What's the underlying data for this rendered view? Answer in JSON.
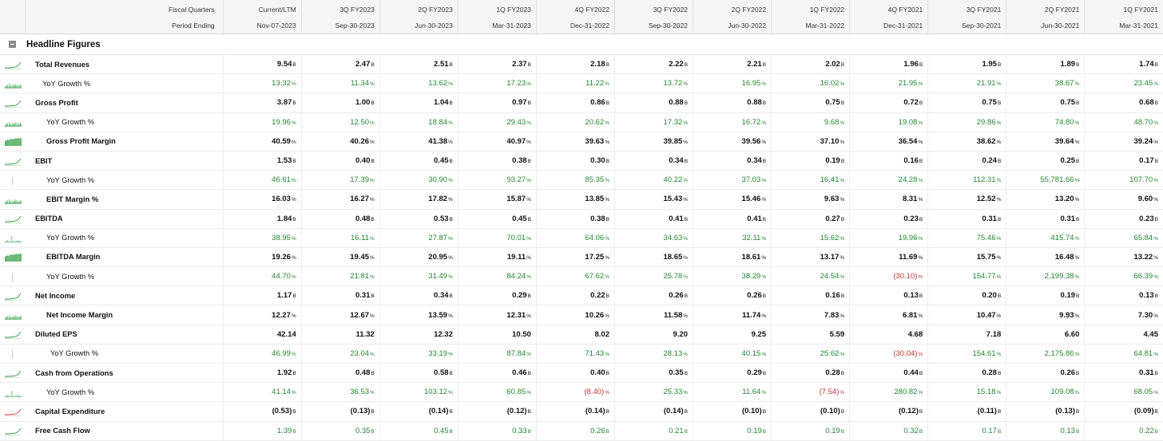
{
  "header": {
    "row1_label": "Fiscal Quarters",
    "row2_label": "Period Ending",
    "quarters": [
      "Current/LTM",
      "3Q FY2023",
      "2Q FY2023",
      "1Q FY2023",
      "4Q FY2022",
      "3Q FY2022",
      "2Q FY2022",
      "1Q FY2022",
      "4Q FY2021",
      "3Q FY2021",
      "2Q FY2021",
      "1Q FY2021"
    ],
    "periods": [
      "Nov-07-2023",
      "Sep-30-2023",
      "Jun-30-2023",
      "Mar-31-2023",
      "Dec-31-2022",
      "Sep-30-2022",
      "Jun-30-2022",
      "Mar-31-2022",
      "Dec-31-2021",
      "Sep-30-2021",
      "Jun-30-2021",
      "Mar-31-2021"
    ]
  },
  "section": {
    "title": "Headline Figures",
    "toggle_icon": "collapse-minus-icon"
  },
  "colors": {
    "positive": "#1f8a2e",
    "negative": "#d0312d",
    "spark_green": "#2e9e3e",
    "spark_red": "#e0413b"
  },
  "rows": [
    {
      "label": "Total Revenues",
      "indent": 0,
      "bold": true,
      "style": "plain",
      "spark": "line-green",
      "values": [
        "9.54",
        "2.47",
        "2.51",
        "2.37",
        "2.18",
        "2.22",
        "2.21",
        "2.02",
        "1.96",
        "1.95",
        "1.89",
        "1.74"
      ],
      "unit": "B"
    },
    {
      "label": "YoY Growth %",
      "indent": 5,
      "bold": false,
      "style": "growth",
      "spark": "bars-green",
      "values": [
        "13.32",
        "11.34",
        "13.62",
        "17.23",
        "11.22",
        "13.72",
        "16.95",
        "16.02",
        "21.95",
        "21.91",
        "38.67",
        "23.45"
      ],
      "unit": "%"
    },
    {
      "label": "Gross Profit",
      "indent": 0,
      "bold": true,
      "style": "plain",
      "spark": "line-green",
      "values": [
        "3.87",
        "1.00",
        "1.04",
        "0.97",
        "0.86",
        "0.88",
        "0.88",
        "0.75",
        "0.72",
        "0.75",
        "0.75",
        "0.68"
      ],
      "unit": "B"
    },
    {
      "label": "YoY Growth %",
      "indent": 1,
      "bold": false,
      "style": "growth",
      "spark": "bars-green",
      "values": [
        "19.96",
        "12.50",
        "18.84",
        "29.43",
        "20.62",
        "17.32",
        "16.72",
        "9.68",
        "19.08",
        "29.86",
        "74.80",
        "48.70"
      ],
      "unit": "%"
    },
    {
      "label": "Gross Profit Margin",
      "indent": 1,
      "bold": true,
      "style": "plain",
      "spark": "area-green",
      "values": [
        "40.59",
        "40.26",
        "41.38",
        "40.97",
        "39.63",
        "39.85",
        "39.56",
        "37.10",
        "36.54",
        "38.62",
        "39.64",
        "39.24"
      ],
      "unit": "%"
    },
    {
      "label": "EBIT",
      "indent": 0,
      "bold": true,
      "style": "plain",
      "spark": "line-green",
      "values": [
        "1.53",
        "0.40",
        "0.45",
        "0.38",
        "0.30",
        "0.34",
        "0.34",
        "0.19",
        "0.16",
        "0.24",
        "0.25",
        "0.17"
      ],
      "unit": "B"
    },
    {
      "label": "YoY Growth %",
      "indent": 1,
      "bold": false,
      "style": "growth",
      "spark": "tick-green",
      "values": [
        "46.61",
        "17.39",
        "30.90",
        "93.27",
        "85.35",
        "40.22",
        "37.03",
        "16.41",
        "24.28",
        "112.31",
        "55,781.66",
        "107.70"
      ],
      "unit": "%"
    },
    {
      "label": "EBIT Margin %",
      "indent": 1,
      "bold": true,
      "style": "plain",
      "spark": "bars-green",
      "values": [
        "16.03",
        "16.27",
        "17.82",
        "15.87",
        "13.85",
        "15.43",
        "15.46",
        "9.63",
        "8.31",
        "12.52",
        "13.20",
        "9.60"
      ],
      "unit": "%"
    },
    {
      "label": "EBITDA",
      "indent": 0,
      "bold": true,
      "style": "plain",
      "spark": "line-green",
      "values": [
        "1.84",
        "0.48",
        "0.53",
        "0.45",
        "0.38",
        "0.41",
        "0.41",
        "0.27",
        "0.23",
        "0.31",
        "0.31",
        "0.23"
      ],
      "unit": "B"
    },
    {
      "label": "YoY Growth %",
      "indent": 1,
      "bold": false,
      "style": "growth",
      "spark": "spiky-green",
      "values": [
        "38.95",
        "16.11",
        "27.87",
        "70.01",
        "64.06",
        "34.63",
        "32.11",
        "15.62",
        "19.96",
        "75.46",
        "415.74",
        "65.84"
      ],
      "unit": "%"
    },
    {
      "label": "EBITDA Margin",
      "indent": 1,
      "bold": true,
      "style": "plain",
      "spark": "area-green",
      "values": [
        "19.26",
        "19.45",
        "20.95",
        "19.11",
        "17.25",
        "18.65",
        "18.61",
        "13.17",
        "11.69",
        "15.75",
        "16.48",
        "13.22"
      ],
      "unit": "%"
    },
    {
      "label": "YoY Growth %",
      "indent": 1,
      "bold": false,
      "style": "growth",
      "spark": "tick-green",
      "values": [
        "44.70",
        "21.81",
        "31.49",
        "84.24",
        "67.62",
        "25.78",
        "38.29",
        "24.54",
        "(30.10)",
        "154.77",
        "2,199.38",
        "66.39"
      ],
      "unit": "%"
    },
    {
      "label": "Net Income",
      "indent": 0,
      "bold": true,
      "style": "plain",
      "spark": "line-green",
      "values": [
        "1.17",
        "0.31",
        "0.34",
        "0.29",
        "0.22",
        "0.26",
        "0.26",
        "0.16",
        "0.13",
        "0.20",
        "0.19",
        "0.13"
      ],
      "unit": "B"
    },
    {
      "label": "Net Income Margin",
      "indent": 1,
      "bold": true,
      "style": "plain",
      "spark": "bars-green",
      "values": [
        "12.27",
        "12.67",
        "13.59",
        "12.31",
        "10.26",
        "11.58",
        "11.74",
        "7.83",
        "6.81",
        "10.47",
        "9.93",
        "7.30"
      ],
      "unit": "%"
    },
    {
      "label": "Diluted EPS",
      "indent": 0,
      "bold": true,
      "style": "plain",
      "spark": "line-green",
      "values": [
        "42.14",
        "11.32",
        "12.32",
        "10.50",
        "8.02",
        "9.20",
        "9.25",
        "5.59",
        "4.68",
        "7.18",
        "6.60",
        "4.45"
      ],
      "unit": ""
    },
    {
      "label": "YoY Growth %",
      "indent": 3,
      "bold": false,
      "style": "growth",
      "spark": "tick-green",
      "values": [
        "46.99",
        "23.04",
        "33.19",
        "87.84",
        "71.43",
        "28.13",
        "40.15",
        "25.62",
        "(30.04)",
        "154.61",
        "2,175.86",
        "64.81"
      ],
      "unit": "%"
    },
    {
      "label": "Cash from Operations",
      "indent": 0,
      "bold": true,
      "style": "plain",
      "spark": "line-green",
      "values": [
        "1.92",
        "0.48",
        "0.58",
        "0.46",
        "0.40",
        "0.35",
        "0.29",
        "0.28",
        "0.44",
        "0.28",
        "0.26",
        "0.31"
      ],
      "unit": "B"
    },
    {
      "label": "YoY Growth %",
      "indent": 4,
      "bold": false,
      "style": "growth",
      "spark": "spiky-green",
      "values": [
        "41.14",
        "36.53",
        "103.12",
        "60.85",
        "(8.40)",
        "25.33",
        "11.64",
        "(7.54)",
        "280.82",
        "15.18",
        "109.08",
        "68.05"
      ],
      "unit": "%"
    },
    {
      "label": "Capital Expenditure",
      "indent": 0,
      "bold": true,
      "style": "plain",
      "spark": "line-red",
      "values": [
        "(0.53)",
        "(0.13)",
        "(0.14)",
        "(0.12)",
        "(0.14)",
        "(0.14)",
        "(0.10)",
        "(0.10)",
        "(0.12)",
        "(0.11)",
        "(0.13)",
        "(0.09)"
      ],
      "unit": "B"
    },
    {
      "label": "Free Cash Flow",
      "indent": 0,
      "bold": true,
      "style": "growth",
      "spark": "line-green",
      "values": [
        "1.39",
        "0.35",
        "0.45",
        "0.33",
        "0.26",
        "0.21",
        "0.19",
        "0.19",
        "0.32",
        "0.17",
        "0.13",
        "0.22"
      ],
      "unit": "B"
    }
  ]
}
